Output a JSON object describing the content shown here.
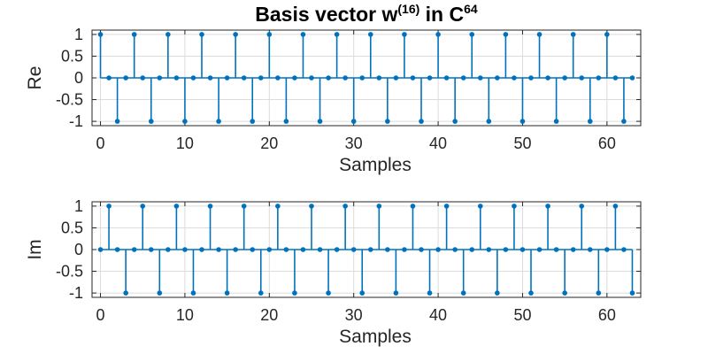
{
  "chart_data": [
    {
      "type": "stem",
      "title_parts": [
        "Basis vector w",
        "(16)",
        " in C",
        "64"
      ],
      "xlabel": "Samples",
      "ylabel": "Re",
      "xlim": [
        -1,
        64
      ],
      "ylim": [
        -1.1,
        1.1
      ],
      "xticks": [
        0,
        10,
        20,
        30,
        40,
        50,
        60
      ],
      "yticks": [
        1,
        0.5,
        0,
        -0.5,
        -1
      ],
      "ytick_labels": [
        "1",
        "0.5",
        "0",
        "-0.5",
        "-1"
      ],
      "grid": true,
      "color": "#0072bd",
      "x": [
        0,
        1,
        2,
        3,
        4,
        5,
        6,
        7,
        8,
        9,
        10,
        11,
        12,
        13,
        14,
        15,
        16,
        17,
        18,
        19,
        20,
        21,
        22,
        23,
        24,
        25,
        26,
        27,
        28,
        29,
        30,
        31,
        32,
        33,
        34,
        35,
        36,
        37,
        38,
        39,
        40,
        41,
        42,
        43,
        44,
        45,
        46,
        47,
        48,
        49,
        50,
        51,
        52,
        53,
        54,
        55,
        56,
        57,
        58,
        59,
        60,
        61,
        62,
        63
      ],
      "values": [
        1,
        0,
        -1,
        0,
        1,
        0,
        -1,
        0,
        1,
        0,
        -1,
        0,
        1,
        0,
        -1,
        0,
        1,
        0,
        -1,
        0,
        1,
        0,
        -1,
        0,
        1,
        0,
        -1,
        0,
        1,
        0,
        -1,
        0,
        1,
        0,
        -1,
        0,
        1,
        0,
        -1,
        0,
        1,
        0,
        -1,
        0,
        1,
        0,
        -1,
        0,
        1,
        0,
        -1,
        0,
        1,
        0,
        -1,
        0,
        1,
        0,
        -1,
        0,
        1,
        0,
        -1,
        0
      ]
    },
    {
      "type": "stem",
      "xlabel": "Samples",
      "ylabel": "Im",
      "xlim": [
        -1,
        64
      ],
      "ylim": [
        -1.1,
        1.1
      ],
      "xticks": [
        0,
        10,
        20,
        30,
        40,
        50,
        60
      ],
      "yticks": [
        1,
        0.5,
        0,
        -0.5,
        -1
      ],
      "ytick_labels": [
        "1",
        "0.5",
        "0",
        "-0.5",
        "-1"
      ],
      "grid": true,
      "color": "#0072bd",
      "x": [
        0,
        1,
        2,
        3,
        4,
        5,
        6,
        7,
        8,
        9,
        10,
        11,
        12,
        13,
        14,
        15,
        16,
        17,
        18,
        19,
        20,
        21,
        22,
        23,
        24,
        25,
        26,
        27,
        28,
        29,
        30,
        31,
        32,
        33,
        34,
        35,
        36,
        37,
        38,
        39,
        40,
        41,
        42,
        43,
        44,
        45,
        46,
        47,
        48,
        49,
        50,
        51,
        52,
        53,
        54,
        55,
        56,
        57,
        58,
        59,
        60,
        61,
        62,
        63
      ],
      "values": [
        0,
        1,
        0,
        -1,
        0,
        1,
        0,
        -1,
        0,
        1,
        0,
        -1,
        0,
        1,
        0,
        -1,
        0,
        1,
        0,
        -1,
        0,
        1,
        0,
        -1,
        0,
        1,
        0,
        -1,
        0,
        1,
        0,
        -1,
        0,
        1,
        0,
        -1,
        0,
        1,
        0,
        -1,
        0,
        1,
        0,
        -1,
        0,
        1,
        0,
        -1,
        0,
        1,
        0,
        -1,
        0,
        1,
        0,
        -1,
        0,
        1,
        0,
        -1,
        0,
        1,
        0,
        -1
      ]
    }
  ]
}
